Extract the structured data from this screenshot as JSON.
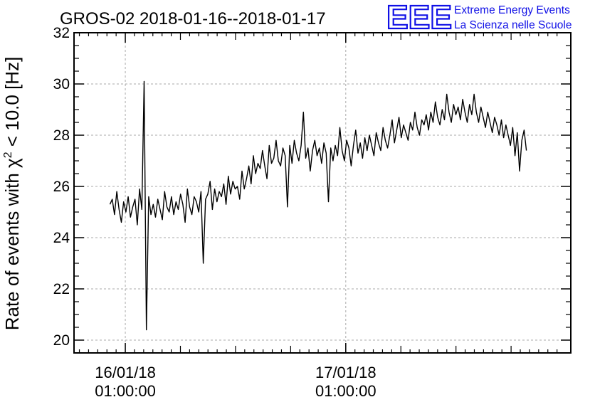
{
  "chart_data": {
    "type": "line",
    "title": "GROS-02 2018-01-16--2018-01-17",
    "ylabel": {
      "prefix": "Rate of events with ",
      "symbol": "χ",
      "superscript": "2",
      "suffix": " < 10.0 [Hz]"
    },
    "xlabel": "",
    "ylim": [
      19.5,
      32
    ],
    "xlim": [
      "2018-01-15 19:25",
      "2018-01-18 01:30"
    ],
    "yticks": [
      20,
      22,
      24,
      26,
      28,
      30,
      32
    ],
    "xticks": [
      {
        "x": "2018-01-16 01:00",
        "line1": "16/01/18",
        "line2": "01:00:00"
      },
      {
        "x": "2018-01-17 01:00",
        "line1": "17/01/18",
        "line2": "01:00:00"
      }
    ],
    "grid": true,
    "series": [
      {
        "color": "#000000",
        "x_start": "2018-01-15 23:20",
        "x_end": "2018-01-17 20:40",
        "values": [
          25.3,
          25.5,
          24.9,
          25.8,
          25.1,
          24.6,
          25.4,
          25.0,
          25.6,
          24.8,
          25.2,
          25.5,
          24.5,
          25.9,
          25.1,
          30.1,
          20.4,
          25.6,
          24.9,
          25.3,
          24.8,
          25.5,
          25.1,
          24.7,
          25.8,
          25.2,
          25.0,
          25.6,
          24.9,
          25.4,
          25.1,
          25.7,
          25.3,
          24.6,
          25.9,
          25.2,
          24.9,
          25.6,
          25.4,
          25.0,
          25.8,
          23.0,
          25.5,
          25.7,
          26.2,
          25.1,
          25.9,
          25.4,
          25.8,
          25.6,
          26.1,
          25.3,
          26.4,
          25.7,
          26.2,
          25.9,
          26.0,
          25.5,
          26.6,
          25.9,
          26.3,
          26.8,
          26.1,
          27.2,
          26.5,
          26.9,
          26.7,
          27.4,
          26.8,
          26.3,
          27.6,
          26.9,
          27.1,
          27.8,
          27.0,
          26.8,
          27.5,
          27.2,
          25.2,
          27.6,
          26.9,
          27.8,
          27.3,
          27.0,
          27.6,
          28.9,
          27.1,
          27.5,
          26.6,
          27.4,
          27.8,
          27.2,
          27.5,
          26.9,
          27.7,
          27.3,
          25.4,
          27.5,
          27.0,
          27.6,
          27.2,
          28.3,
          27.4,
          27.0,
          27.8,
          27.5,
          26.8,
          27.6,
          28.2,
          27.3,
          27.7,
          27.1,
          27.9,
          27.4,
          28.0,
          27.6,
          27.2,
          28.1,
          27.7,
          27.4,
          28.3,
          27.8,
          27.5,
          28.0,
          28.6,
          27.7,
          28.2,
          28.7,
          27.9,
          28.4,
          28.1,
          27.8,
          28.5,
          28.2,
          28.9,
          28.3,
          28.0,
          28.6,
          28.4,
          28.8,
          28.2,
          28.9,
          28.5,
          29.3,
          28.7,
          28.4,
          29.0,
          28.6,
          29.6,
          28.9,
          28.5,
          29.2,
          28.8,
          29.1,
          28.6,
          29.4,
          28.9,
          28.5,
          29.2,
          28.8,
          29.6,
          28.9,
          28.5,
          29.1,
          28.7,
          28.3,
          28.9,
          28.5,
          28.1,
          28.7,
          28.4,
          28.0,
          28.6,
          27.9,
          28.4,
          28.0,
          27.6,
          28.3,
          27.2,
          28.1,
          26.6,
          27.8,
          28.2,
          27.4
        ]
      }
    ]
  },
  "logo": {
    "mark": "EEE",
    "line1": "Extreme Energy Events",
    "line2": "La Scienza nelle Scuole"
  }
}
